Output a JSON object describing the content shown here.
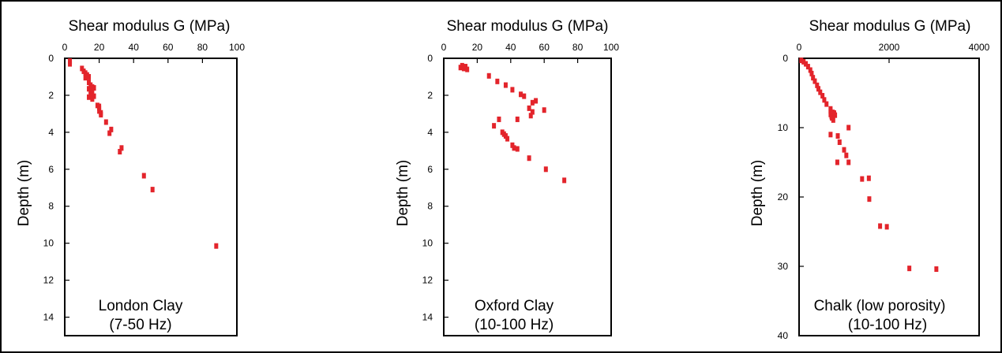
{
  "colors": {
    "marker": "#e3242b",
    "axis": "#000000",
    "background": "#ffffff"
  },
  "chart_data": [
    {
      "type": "scatter",
      "label_line1": "London Clay",
      "label_line2": "(7-50 Hz)",
      "xlabel": "Shear modulus G (MPa)",
      "ylabel": "Depth (m)",
      "xlim": [
        0,
        100
      ],
      "ylim": [
        0,
        15
      ],
      "y_inverted": true,
      "xticks": [
        0,
        20,
        40,
        60,
        80,
        100
      ],
      "yticks": [
        0,
        2,
        4,
        6,
        8,
        10,
        12,
        14
      ],
      "x": [
        3,
        3,
        10,
        11,
        12,
        13,
        14,
        12,
        14,
        15,
        16,
        14,
        15,
        16,
        17,
        15,
        14,
        16,
        17,
        19,
        20,
        20,
        21,
        21,
        20,
        24,
        27,
        26,
        33,
        32,
        46,
        51,
        88
      ],
      "y": [
        0.15,
        0.3,
        0.55,
        0.7,
        0.8,
        0.9,
        1.0,
        1.05,
        1.3,
        1.45,
        1.55,
        1.65,
        1.75,
        1.85,
        1.6,
        2.0,
        2.1,
        2.2,
        2.05,
        2.55,
        2.7,
        2.85,
        2.95,
        3.05,
        2.6,
        3.45,
        3.85,
        4.05,
        4.85,
        5.05,
        6.35,
        7.1,
        10.15
      ]
    },
    {
      "type": "scatter",
      "label_line1": "Oxford Clay",
      "label_line2": "(10-100 Hz)",
      "xlabel": "Shear modulus G (MPa)",
      "ylabel": "Depth (m)",
      "xlim": [
        0,
        100
      ],
      "ylim": [
        0,
        15
      ],
      "y_inverted": true,
      "xticks": [
        0,
        20,
        40,
        60,
        80,
        100
      ],
      "yticks": [
        0,
        2,
        4,
        6,
        8,
        10,
        12,
        14
      ],
      "x": [
        10,
        11,
        12,
        13,
        14,
        27,
        32,
        37,
        41,
        46,
        48,
        53,
        55,
        51,
        60,
        52,
        53,
        33,
        44,
        30,
        35,
        36,
        37,
        38,
        41,
        42,
        44,
        51,
        61,
        72
      ],
      "y": [
        0.5,
        0.4,
        0.55,
        0.45,
        0.6,
        0.95,
        1.25,
        1.45,
        1.7,
        1.95,
        2.05,
        2.4,
        2.3,
        2.7,
        2.8,
        3.1,
        2.9,
        3.3,
        3.3,
        3.65,
        4.0,
        4.1,
        4.2,
        4.35,
        4.7,
        4.85,
        4.9,
        5.4,
        6.0,
        6.6
      ]
    },
    {
      "type": "scatter",
      "label_line1": "Chalk (low porosity)",
      "label_line2": "(10-100 Hz)",
      "xlabel": "Shear modulus G (MPa)",
      "ylabel": "Depth (m)",
      "xlim": [
        0,
        4000
      ],
      "ylim": [
        0,
        40
      ],
      "y_inverted": true,
      "xticks": [
        0,
        2000,
        4000
      ],
      "yticks": [
        0,
        10,
        20,
        30,
        40
      ],
      "x": [
        50,
        100,
        150,
        200,
        250,
        280,
        310,
        350,
        400,
        430,
        470,
        520,
        560,
        610,
        700,
        750,
        800,
        700,
        720,
        760,
        780,
        730,
        700,
        1100,
        860,
        900,
        1000,
        1050,
        1100,
        1400,
        1550,
        1560,
        700,
        850,
        1800,
        1950,
        2450,
        3050
      ],
      "y": [
        0.3,
        0.5,
        0.8,
        1.2,
        1.7,
        2.2,
        2.8,
        3.3,
        3.9,
        4.4,
        4.9,
        5.4,
        6.0,
        6.6,
        7.3,
        7.8,
        8.2,
        7.6,
        8.4,
        8.9,
        7.9,
        8.6,
        8.1,
        10.0,
        11.2,
        12.1,
        13.2,
        14.0,
        15.0,
        17.4,
        17.3,
        20.3,
        11.0,
        15.0,
        24.2,
        24.3,
        30.3,
        30.4
      ]
    }
  ]
}
